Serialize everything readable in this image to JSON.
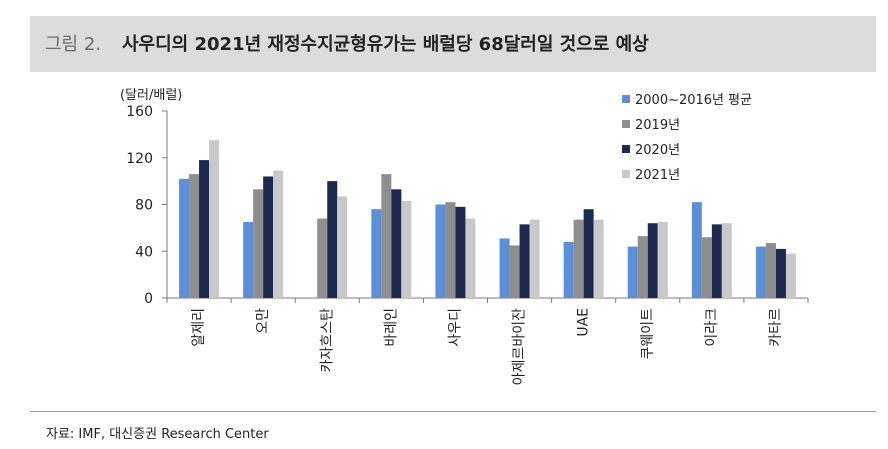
{
  "header": {
    "figure_number": "그림 2.",
    "title": "사우디의 2021년 재정수지균형유가는 배럴당 68달러일 것으로 예상"
  },
  "source": "자료: IMF, 대신증권 Research Center",
  "chart_data": {
    "type": "bar",
    "unit_label": "(달러/배럴)",
    "ylim": [
      0,
      160
    ],
    "yticks": [
      0,
      40,
      80,
      120,
      160
    ],
    "categories": [
      "알제리",
      "오만",
      "카자흐스탄",
      "바레인",
      "사우디",
      "아제르바이잔",
      "UAE",
      "쿠웨이트",
      "이라크",
      "카타르"
    ],
    "series": [
      {
        "name": "2000~2016년 평균",
        "color": "#5b8fd6",
        "values": [
          102,
          65,
          null,
          76,
          80,
          51,
          48,
          44,
          82,
          44
        ]
      },
      {
        "name": "2019년",
        "color": "#8e8e8e",
        "values": [
          106,
          93,
          68,
          106,
          82,
          45,
          67,
          53,
          52,
          47
        ]
      },
      {
        "name": "2020년",
        "color": "#1c2a4d",
        "values": [
          118,
          104,
          100,
          93,
          78,
          63,
          76,
          64,
          63,
          42
        ]
      },
      {
        "name": "2021년",
        "color": "#c9c9c9",
        "values": [
          135,
          109,
          87,
          83,
          68,
          67,
          67,
          65,
          64,
          38
        ]
      }
    ],
    "legend_position": "top-right",
    "grid": false
  }
}
